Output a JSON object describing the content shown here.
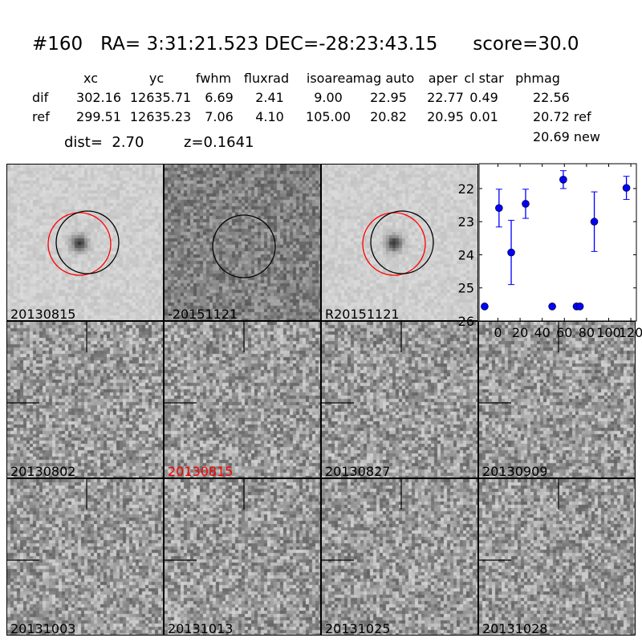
{
  "title": "#160   RA= 3:31:21.523 DEC=-28:23:43.15      score=30.0",
  "table": {
    "headers": [
      "xc",
      "yc",
      "fwhm",
      "fluxrad",
      "isoarea",
      "mag auto",
      "aper",
      "cl star",
      "phmag"
    ],
    "rows": [
      {
        "label": "dif",
        "values": [
          "302.16",
          "12635.71",
          "6.69",
          "2.41",
          "9.00",
          "22.95",
          "22.77",
          "0.49",
          "22.56"
        ]
      },
      {
        "label": "ref",
        "values": [
          "299.51",
          "12635.23",
          "7.06",
          "4.10",
          "105.00",
          "20.82",
          "20.95",
          "0.01",
          "20.72 ref"
        ]
      }
    ],
    "extra": "20.69 new"
  },
  "dist": "dist=  2.70",
  "z": "z=0.1641",
  "panels": [
    {
      "label": "20130815",
      "color": "#000000",
      "style": "smooth",
      "circles": [
        "red",
        "black"
      ]
    },
    {
      "label": "-20151121",
      "color": "#000000",
      "style": "dark",
      "circles": [
        "black"
      ]
    },
    {
      "label": "R20151121",
      "color": "#000000",
      "style": "smooth",
      "circles": [
        "red",
        "black"
      ]
    },
    {
      "label": "20130802",
      "color": "#000000",
      "style": "noise",
      "crosshair": true
    },
    {
      "label": "20130815",
      "color": "#ff0000",
      "style": "noise",
      "crosshair": true
    },
    {
      "label": "20130827",
      "color": "#000000",
      "style": "noise",
      "crosshair": true
    },
    {
      "label": "20130909",
      "color": "#000000",
      "style": "noise",
      "crosshair": true
    },
    {
      "label": "20131003",
      "color": "#000000",
      "style": "noise",
      "crosshair": true
    },
    {
      "label": "20131013",
      "color": "#000000",
      "style": "noise",
      "crosshair": true
    },
    {
      "label": "20131025",
      "color": "#000000",
      "style": "noise",
      "crosshair": true
    },
    {
      "label": "20131028",
      "color": "#000000",
      "style": "noise",
      "crosshair": true
    }
  ],
  "chart_data": {
    "type": "scatter",
    "x": [
      -12,
      1,
      12,
      25,
      49,
      59,
      71,
      74,
      87,
      116
    ],
    "y": [
      25.56,
      22.59,
      23.93,
      22.46,
      25.56,
      21.73,
      25.56,
      25.56,
      23.0,
      21.98
    ],
    "yerr": [
      0.05,
      0.57,
      0.97,
      0.44,
      0.05,
      0.27,
      0.05,
      0.05,
      0.9,
      0.35
    ],
    "xlim": [
      -17,
      125
    ],
    "ylim": [
      26,
      21.25
    ],
    "y_inverted": true,
    "xticks": [
      "0",
      "20",
      "40",
      "60",
      "80",
      "100",
      "120"
    ],
    "yticks": [
      "22",
      "23",
      "24",
      "25",
      "26"
    ],
    "marker_color": "#0000ff"
  }
}
